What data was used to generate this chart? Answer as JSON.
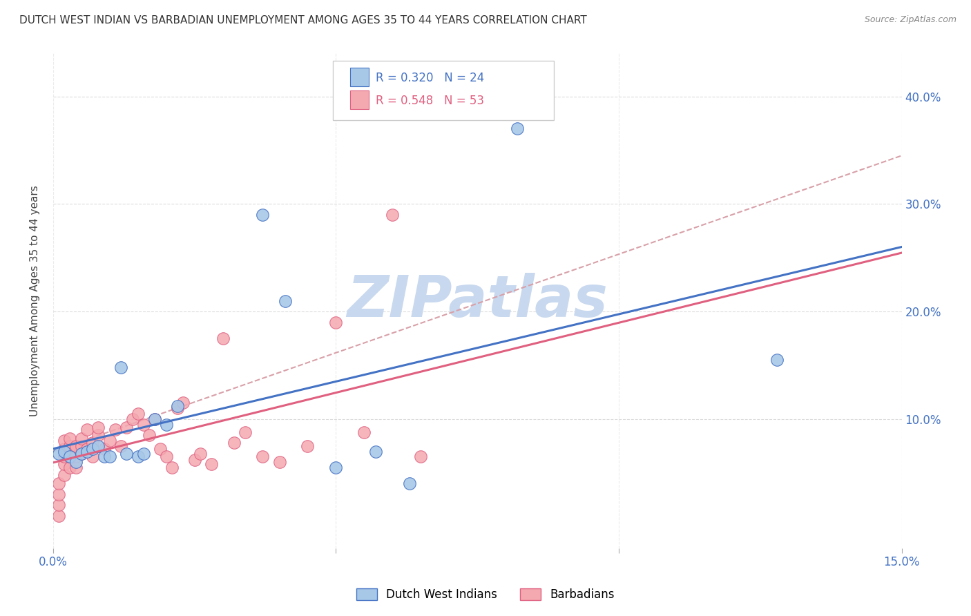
{
  "title": "DUTCH WEST INDIAN VS BARBADIAN UNEMPLOYMENT AMONG AGES 35 TO 44 YEARS CORRELATION CHART",
  "source": "Source: ZipAtlas.com",
  "ylabel": "Unemployment Among Ages 35 to 44 years",
  "legend_label1": "Dutch West Indians",
  "legend_label2": "Barbadians",
  "blue_fill": "#a8c8e8",
  "pink_fill": "#f4a8b0",
  "blue_edge": "#4472c4",
  "pink_edge": "#e06080",
  "blue_line": "#4472c4",
  "pink_line": "#e06080",
  "dashed_line_color": "#d8a0a8",
  "grid_color": "#d8d8d8",
  "background_color": "#ffffff",
  "watermark_color": "#c8d8ee",
  "xlim": [
    0.0,
    0.15
  ],
  "ylim": [
    -0.02,
    0.44
  ],
  "yticks": [
    0.1,
    0.2,
    0.3,
    0.4
  ],
  "xticks": [
    0.0,
    0.05,
    0.1,
    0.15
  ],
  "dutch_x": [
    0.001,
    0.002,
    0.003,
    0.004,
    0.005,
    0.006,
    0.007,
    0.008,
    0.009,
    0.01,
    0.012,
    0.013,
    0.015,
    0.016,
    0.018,
    0.02,
    0.022,
    0.037,
    0.041,
    0.05,
    0.057,
    0.063,
    0.082,
    0.128
  ],
  "dutch_y": [
    0.068,
    0.07,
    0.065,
    0.06,
    0.068,
    0.07,
    0.072,
    0.075,
    0.065,
    0.065,
    0.148,
    0.068,
    0.065,
    0.068,
    0.1,
    0.095,
    0.112,
    0.29,
    0.21,
    0.055,
    0.07,
    0.04,
    0.37,
    0.155
  ],
  "barb_x": [
    0.001,
    0.001,
    0.001,
    0.001,
    0.002,
    0.002,
    0.002,
    0.002,
    0.002,
    0.003,
    0.003,
    0.003,
    0.003,
    0.004,
    0.004,
    0.004,
    0.005,
    0.005,
    0.005,
    0.006,
    0.006,
    0.007,
    0.007,
    0.008,
    0.008,
    0.009,
    0.01,
    0.011,
    0.012,
    0.013,
    0.014,
    0.015,
    0.016,
    0.017,
    0.018,
    0.019,
    0.02,
    0.021,
    0.022,
    0.023,
    0.025,
    0.026,
    0.028,
    0.03,
    0.032,
    0.034,
    0.037,
    0.04,
    0.045,
    0.05,
    0.055,
    0.06,
    0.065
  ],
  "barb_y": [
    0.01,
    0.02,
    0.03,
    0.04,
    0.048,
    0.058,
    0.065,
    0.072,
    0.08,
    0.055,
    0.065,
    0.075,
    0.082,
    0.055,
    0.065,
    0.075,
    0.068,
    0.075,
    0.082,
    0.072,
    0.09,
    0.065,
    0.078,
    0.085,
    0.092,
    0.072,
    0.08,
    0.09,
    0.075,
    0.092,
    0.1,
    0.105,
    0.095,
    0.085,
    0.1,
    0.072,
    0.065,
    0.055,
    0.11,
    0.115,
    0.062,
    0.068,
    0.058,
    0.175,
    0.078,
    0.088,
    0.065,
    0.06,
    0.075,
    0.19,
    0.088,
    0.29,
    0.065
  ],
  "legend_R1": "R = 0.320",
  "legend_N1": "N = 24",
  "legend_R2": "R = 0.548",
  "legend_N2": "N = 53"
}
